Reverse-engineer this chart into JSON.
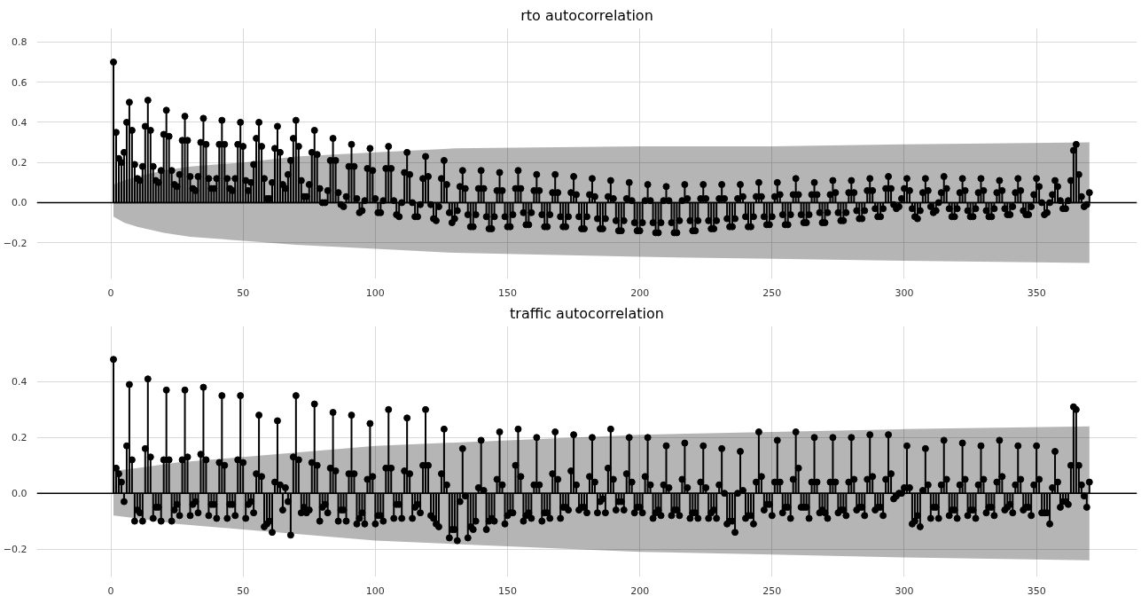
{
  "chart_data": [
    {
      "type": "lollipop",
      "title": "rto autocorrelation",
      "xlim": [
        -28,
        388
      ],
      "ylim": [
        -0.38,
        0.87
      ],
      "xticks": [
        0,
        50,
        100,
        150,
        200,
        250,
        300,
        350
      ],
      "yticks": [
        {
          "value": -0.2,
          "label": "−0.2"
        },
        {
          "value": 0,
          "label": "0.0"
        },
        {
          "value": 0.2,
          "label": "0.2"
        },
        {
          "value": 0.4,
          "label": "0.4"
        },
        {
          "value": 0.6,
          "label": "0.6"
        },
        {
          "value": 0.8,
          "label": "0.8"
        }
      ],
      "grid": true,
      "marker": "circle",
      "ref_lines": [
        {
          "axis": "y",
          "value": 0,
          "color": "#000000"
        }
      ],
      "series": [
        {
          "type": "line",
          "color": "#000000",
          "marker": "none",
          "x": [
            1,
            5,
            10,
            20,
            30,
            50,
            70,
            100,
            130,
            200,
            250,
            300,
            370
          ],
          "values": [
            0,
            0,
            0,
            0,
            0,
            0,
            0,
            0,
            0,
            0,
            0,
            0,
            0
          ],
          "upper": [
            0.09,
            0.11,
            0.13,
            0.16,
            0.18,
            0.2,
            0.23,
            0.25,
            0.27,
            0.28,
            0.28,
            0.29,
            0.3
          ],
          "lower": [
            -0.07,
            -0.1,
            -0.12,
            -0.15,
            -0.17,
            -0.19,
            -0.21,
            -0.23,
            -0.25,
            -0.27,
            -0.28,
            -0.29,
            -0.3
          ]
        },
        {
          "color": "#000000",
          "x": [
            1,
            2,
            3,
            4,
            5,
            6,
            7,
            8,
            9,
            10,
            11,
            12,
            13,
            14,
            15,
            16,
            17,
            18,
            19,
            20,
            21,
            22,
            23,
            24,
            25,
            26,
            27,
            28,
            29,
            30,
            31,
            32,
            33,
            34,
            35,
            36,
            37,
            38,
            39,
            40,
            41,
            42,
            43,
            44,
            45,
            46,
            47,
            48,
            49,
            50,
            51,
            52,
            53,
            54,
            55,
            56,
            57,
            58,
            59,
            60,
            61,
            62,
            63,
            64,
            65,
            66,
            67,
            68,
            69,
            70,
            71,
            72,
            73,
            74,
            75,
            76,
            77,
            78,
            79,
            80,
            81,
            82,
            83,
            84,
            85,
            86,
            87,
            88,
            89,
            90,
            91,
            92,
            93,
            94,
            95,
            96,
            97,
            98,
            99,
            100,
            101,
            102,
            103,
            104,
            105,
            106,
            107,
            108,
            109,
            110,
            111,
            112,
            113,
            114,
            115,
            116,
            117,
            118,
            119,
            120,
            121,
            122,
            123,
            124,
            125,
            126,
            127,
            128,
            129,
            130,
            131,
            132,
            133,
            134,
            135,
            136,
            137,
            138,
            139,
            140,
            141,
            142,
            143,
            144,
            145,
            146,
            147,
            148,
            149,
            150,
            151,
            152,
            153,
            154,
            155,
            156,
            157,
            158,
            159,
            160,
            161,
            162,
            163,
            164,
            165,
            166,
            167,
            168,
            169,
            170,
            171,
            172,
            173,
            174,
            175,
            176,
            177,
            178,
            179,
            180,
            181,
            182,
            183,
            184,
            185,
            186,
            187,
            188,
            189,
            190,
            191,
            192,
            193,
            194,
            195,
            196,
            197,
            198,
            199,
            200,
            201,
            202,
            203,
            204,
            205,
            206,
            207,
            208,
            209,
            210,
            211,
            212,
            213,
            214,
            215,
            216,
            217,
            218,
            219,
            220,
            221,
            222,
            223,
            224,
            225,
            226,
            227,
            228,
            229,
            230,
            231,
            232,
            233,
            234,
            235,
            236,
            237,
            238,
            239,
            240,
            241,
            242,
            243,
            244,
            245,
            246,
            247,
            248,
            249,
            250,
            251,
            252,
            253,
            254,
            255,
            256,
            257,
            258,
            259,
            260,
            261,
            262,
            263,
            264,
            265,
            266,
            267,
            268,
            269,
            270,
            271,
            272,
            273,
            274,
            275,
            276,
            277,
            278,
            279,
            280,
            281,
            282,
            283,
            284,
            285,
            286,
            287,
            288,
            289,
            290,
            291,
            292,
            293,
            294,
            295,
            296,
            297,
            298,
            299,
            300,
            301,
            302,
            303,
            304,
            305,
            306,
            307,
            308,
            309,
            310,
            311,
            312,
            313,
            314,
            315,
            316,
            317,
            318,
            319,
            320,
            321,
            322,
            323,
            324,
            325,
            326,
            327,
            328,
            329,
            330,
            331,
            332,
            333,
            334,
            335,
            336,
            337,
            338,
            339,
            340,
            341,
            342,
            343,
            344,
            345,
            346,
            347,
            348,
            349,
            350,
            351,
            352,
            353,
            354,
            355,
            356,
            357,
            358,
            359,
            360,
            361,
            362,
            363,
            364,
            365,
            366,
            367,
            368,
            369,
            370
          ],
          "values": [
            0.7,
            0.35,
            0.22,
            0.2,
            0.25,
            0.4,
            0.5,
            0.36,
            0.19,
            0.12,
            0.11,
            0.18,
            0.38,
            0.51,
            0.36,
            0.18,
            0.11,
            0.1,
            0.16,
            0.34,
            0.46,
            0.33,
            0.16,
            0.09,
            0.08,
            0.14,
            0.31,
            0.43,
            0.31,
            0.13,
            0.07,
            0.06,
            0.13,
            0.3,
            0.42,
            0.29,
            0.12,
            0.07,
            0.07,
            0.12,
            0.29,
            0.41,
            0.29,
            0.12,
            0.07,
            0.06,
            0.12,
            0.29,
            0.4,
            0.28,
            0.11,
            0.06,
            0.1,
            0.19,
            0.32,
            0.4,
            0.28,
            0.12,
            0.02,
            0.02,
            0.1,
            0.27,
            0.38,
            0.25,
            0.09,
            0.07,
            0.14,
            0.21,
            0.32,
            0.41,
            0.28,
            0.11,
            0.03,
            0.03,
            0.09,
            0.25,
            0.36,
            0.24,
            0.07,
            0.0,
            0.0,
            0.06,
            0.21,
            0.32,
            0.21,
            0.05,
            -0.01,
            -0.02,
            0.03,
            0.18,
            0.29,
            0.18,
            0.02,
            -0.05,
            -0.04,
            0.01,
            0.17,
            0.27,
            0.16,
            0.02,
            -0.05,
            -0.05,
            0.01,
            0.17,
            0.28,
            0.17,
            0.01,
            -0.06,
            -0.07,
            0.0,
            0.15,
            0.25,
            0.14,
            0.0,
            -0.07,
            -0.07,
            -0.01,
            0.12,
            0.23,
            0.13,
            -0.01,
            -0.08,
            -0.09,
            -0.02,
            0.12,
            0.21,
            0.09,
            -0.05,
            -0.1,
            -0.08,
            -0.04,
            0.08,
            0.16,
            0.07,
            -0.06,
            -0.12,
            -0.12,
            -0.06,
            0.07,
            0.16,
            0.07,
            -0.07,
            -0.13,
            -0.13,
            -0.07,
            0.06,
            0.15,
            0.06,
            -0.07,
            -0.12,
            -0.12,
            -0.06,
            0.07,
            0.16,
            0.07,
            -0.05,
            -0.11,
            -0.11,
            -0.05,
            0.06,
            0.14,
            0.06,
            -0.06,
            -0.12,
            -0.12,
            -0.06,
            0.05,
            0.14,
            0.05,
            -0.07,
            -0.12,
            -0.12,
            -0.07,
            0.05,
            0.13,
            0.04,
            -0.07,
            -0.13,
            -0.13,
            -0.07,
            0.04,
            0.12,
            0.03,
            -0.08,
            -0.13,
            -0.13,
            -0.08,
            0.03,
            0.11,
            0.02,
            -0.09,
            -0.14,
            -0.14,
            -0.09,
            0.02,
            0.1,
            0.01,
            -0.1,
            -0.14,
            -0.14,
            -0.1,
            0.01,
            0.09,
            0.01,
            -0.1,
            -0.15,
            -0.15,
            -0.1,
            0.01,
            0.08,
            0.01,
            -0.1,
            -0.15,
            -0.15,
            -0.09,
            0.01,
            0.09,
            0.02,
            -0.09,
            -0.14,
            -0.14,
            -0.09,
            0.02,
            0.09,
            0.02,
            -0.09,
            -0.13,
            -0.13,
            -0.09,
            0.02,
            0.09,
            0.02,
            -0.08,
            -0.12,
            -0.12,
            -0.08,
            0.02,
            0.09,
            0.03,
            -0.07,
            -0.12,
            -0.12,
            -0.07,
            0.03,
            0.1,
            0.03,
            -0.07,
            -0.11,
            -0.11,
            -0.07,
            0.03,
            0.1,
            0.04,
            -0.06,
            -0.11,
            -0.11,
            -0.06,
            0.04,
            0.12,
            0.04,
            -0.06,
            -0.1,
            -0.1,
            -0.06,
            0.04,
            0.1,
            0.04,
            -0.05,
            -0.1,
            -0.1,
            -0.05,
            0.04,
            0.11,
            0.05,
            -0.05,
            -0.09,
            -0.09,
            -0.05,
            0.05,
            0.11,
            0.05,
            -0.04,
            -0.08,
            -0.08,
            -0.04,
            0.06,
            0.12,
            0.06,
            -0.03,
            -0.07,
            -0.07,
            -0.03,
            0.07,
            0.13,
            0.07,
            -0.01,
            -0.03,
            -0.02,
            0.02,
            0.07,
            0.12,
            0.06,
            -0.03,
            -0.07,
            -0.08,
            -0.04,
            0.05,
            0.12,
            0.06,
            -0.02,
            -0.05,
            -0.04,
            0.0,
            0.05,
            0.13,
            0.07,
            -0.03,
            -0.07,
            -0.07,
            -0.03,
            0.05,
            0.12,
            0.06,
            -0.04,
            -0.07,
            -0.07,
            -0.03,
            0.05,
            0.12,
            0.06,
            -0.04,
            -0.07,
            -0.07,
            -0.03,
            0.05,
            0.11,
            0.06,
            -0.03,
            -0.06,
            -0.06,
            -0.02,
            0.05,
            0.12,
            0.06,
            -0.04,
            -0.06,
            -0.06,
            -0.02,
            0.04,
            0.12,
            0.08,
            0.0,
            -0.06,
            -0.05,
            0.0,
            0.04,
            0.11,
            0.08,
            0.01,
            -0.03,
            -0.03,
            0.01,
            0.11,
            0.26,
            0.29,
            0.14,
            0.03,
            -0.02,
            -0.01,
            0.05
          ]
        }
      ]
    },
    {
      "type": "lollipop",
      "title": "traffic autocorrelation",
      "xlim": [
        -28,
        388
      ],
      "ylim": [
        -0.3,
        0.6
      ],
      "xticks": [
        0,
        50,
        100,
        150,
        200,
        250,
        300,
        350
      ],
      "yticks": [
        {
          "value": -0.2,
          "label": "−0.2"
        },
        {
          "value": 0,
          "label": "0.0"
        },
        {
          "value": 0.2,
          "label": "0.2"
        },
        {
          "value": 0.4,
          "label": "0.4"
        }
      ],
      "grid": true,
      "marker": "circle",
      "ref_lines": [
        {
          "axis": "y",
          "value": 0,
          "color": "#000000"
        }
      ],
      "series": [
        {
          "type": "line",
          "color": "#000000",
          "marker": "none",
          "x": [
            1,
            10,
            25,
            50,
            100,
            150,
            200,
            250,
            300,
            370
          ],
          "values": [
            0,
            0,
            0,
            0,
            0,
            0,
            0,
            0,
            0,
            0
          ],
          "upper": [
            0.08,
            0.09,
            0.11,
            0.13,
            0.17,
            0.19,
            0.21,
            0.22,
            0.23,
            0.24
          ],
          "lower": [
            -0.08,
            -0.09,
            -0.11,
            -0.13,
            -0.17,
            -0.19,
            -0.21,
            -0.22,
            -0.23,
            -0.24
          ]
        },
        {
          "color": "#000000",
          "x": [
            1,
            2,
            3,
            4,
            5,
            6,
            7,
            8,
            9,
            10,
            11,
            12,
            13,
            14,
            15,
            16,
            17,
            18,
            19,
            20,
            21,
            22,
            23,
            24,
            25,
            26,
            27,
            28,
            29,
            30,
            31,
            32,
            33,
            34,
            35,
            36,
            37,
            38,
            39,
            40,
            41,
            42,
            43,
            44,
            45,
            46,
            47,
            48,
            49,
            50,
            51,
            52,
            53,
            54,
            55,
            56,
            57,
            58,
            59,
            60,
            61,
            62,
            63,
            64,
            65,
            66,
            67,
            68,
            69,
            70,
            71,
            72,
            73,
            74,
            75,
            76,
            77,
            78,
            79,
            80,
            81,
            82,
            83,
            84,
            85,
            86,
            87,
            88,
            89,
            90,
            91,
            92,
            93,
            94,
            95,
            96,
            97,
            98,
            99,
            100,
            101,
            102,
            103,
            104,
            105,
            106,
            107,
            108,
            109,
            110,
            111,
            112,
            113,
            114,
            115,
            116,
            117,
            118,
            119,
            120,
            121,
            122,
            123,
            124,
            125,
            126,
            127,
            128,
            129,
            130,
            131,
            132,
            133,
            134,
            135,
            136,
            137,
            138,
            139,
            140,
            141,
            142,
            143,
            144,
            145,
            146,
            147,
            148,
            149,
            150,
            151,
            152,
            153,
            154,
            155,
            156,
            157,
            158,
            159,
            160,
            161,
            162,
            163,
            164,
            165,
            166,
            167,
            168,
            169,
            170,
            171,
            172,
            173,
            174,
            175,
            176,
            177,
            178,
            179,
            180,
            181,
            182,
            183,
            184,
            185,
            186,
            187,
            188,
            189,
            190,
            191,
            192,
            193,
            194,
            195,
            196,
            197,
            198,
            199,
            200,
            201,
            202,
            203,
            204,
            205,
            206,
            207,
            208,
            209,
            210,
            211,
            212,
            213,
            214,
            215,
            216,
            217,
            218,
            219,
            220,
            221,
            222,
            223,
            224,
            225,
            226,
            227,
            228,
            229,
            230,
            231,
            232,
            233,
            234,
            235,
            236,
            237,
            238,
            239,
            240,
            241,
            242,
            243,
            244,
            245,
            246,
            247,
            248,
            249,
            250,
            251,
            252,
            253,
            254,
            255,
            256,
            257,
            258,
            259,
            260,
            261,
            262,
            263,
            264,
            265,
            266,
            267,
            268,
            269,
            270,
            271,
            272,
            273,
            274,
            275,
            276,
            277,
            278,
            279,
            280,
            281,
            282,
            283,
            284,
            285,
            286,
            287,
            288,
            289,
            290,
            291,
            292,
            293,
            294,
            295,
            296,
            297,
            298,
            299,
            300,
            301,
            302,
            303,
            304,
            305,
            306,
            307,
            308,
            309,
            310,
            311,
            312,
            313,
            314,
            315,
            316,
            317,
            318,
            319,
            320,
            321,
            322,
            323,
            324,
            325,
            326,
            327,
            328,
            329,
            330,
            331,
            332,
            333,
            334,
            335,
            336,
            337,
            338,
            339,
            340,
            341,
            342,
            343,
            344,
            345,
            346,
            347,
            348,
            349,
            350,
            351,
            352,
            353,
            354,
            355,
            356,
            357,
            358,
            359,
            360,
            361,
            362,
            363,
            364,
            365,
            366,
            367,
            368,
            369,
            370
          ],
          "values": [
            0.48,
            0.09,
            0.07,
            0.04,
            -0.03,
            0.17,
            0.39,
            0.12,
            -0.1,
            -0.06,
            -0.07,
            -0.1,
            0.16,
            0.41,
            0.13,
            -0.09,
            -0.05,
            -0.05,
            -0.1,
            0.12,
            0.37,
            0.12,
            -0.1,
            -0.06,
            -0.04,
            -0.08,
            0.12,
            0.37,
            0.13,
            -0.08,
            -0.04,
            -0.03,
            -0.07,
            0.14,
            0.38,
            0.12,
            -0.08,
            -0.04,
            -0.04,
            -0.09,
            0.11,
            0.35,
            0.1,
            -0.09,
            -0.04,
            -0.04,
            -0.08,
            0.12,
            0.35,
            0.11,
            -0.09,
            -0.04,
            -0.03,
            -0.07,
            0.07,
            0.28,
            0.06,
            -0.12,
            -0.11,
            -0.1,
            -0.14,
            0.04,
            0.26,
            0.03,
            -0.06,
            0.02,
            -0.03,
            -0.15,
            0.13,
            0.35,
            0.12,
            -0.07,
            -0.05,
            -0.07,
            -0.06,
            0.11,
            0.32,
            0.1,
            -0.1,
            -0.05,
            -0.04,
            -0.07,
            0.09,
            0.29,
            0.08,
            -0.1,
            -0.06,
            -0.06,
            -0.1,
            0.07,
            0.28,
            0.07,
            -0.11,
            -0.09,
            -0.07,
            -0.11,
            0.05,
            0.25,
            0.06,
            -0.11,
            -0.08,
            -0.08,
            -0.1,
            0.09,
            0.3,
            0.09,
            -0.09,
            -0.04,
            -0.04,
            -0.09,
            0.08,
            0.27,
            0.07,
            -0.09,
            -0.05,
            -0.04,
            -0.07,
            0.1,
            0.3,
            0.1,
            -0.08,
            -0.09,
            -0.11,
            -0.12,
            0.07,
            0.23,
            0.03,
            -0.16,
            -0.13,
            -0.13,
            -0.17,
            -0.03,
            0.16,
            -0.01,
            -0.16,
            -0.12,
            -0.13,
            -0.1,
            0.02,
            0.19,
            0.01,
            -0.13,
            -0.1,
            -0.09,
            -0.1,
            0.05,
            0.22,
            0.03,
            -0.11,
            -0.08,
            -0.07,
            -0.07,
            0.1,
            0.23,
            0.06,
            -0.1,
            -0.08,
            -0.07,
            -0.09,
            0.03,
            0.2,
            0.03,
            -0.1,
            -0.07,
            -0.07,
            -0.09,
            0.07,
            0.22,
            0.05,
            -0.09,
            -0.05,
            -0.05,
            -0.06,
            0.08,
            0.21,
            0.03,
            -0.06,
            -0.05,
            -0.05,
            -0.07,
            0.06,
            0.2,
            0.04,
            -0.07,
            -0.03,
            -0.02,
            -0.07,
            0.09,
            0.23,
            0.05,
            -0.06,
            -0.03,
            -0.03,
            -0.06,
            0.07,
            0.2,
            0.04,
            -0.07,
            -0.05,
            -0.05,
            -0.07,
            0.06,
            0.2,
            0.03,
            -0.09,
            -0.07,
            -0.06,
            -0.08,
            0.03,
            0.17,
            0.02,
            -0.08,
            -0.06,
            -0.06,
            -0.08,
            0.05,
            0.18,
            0.02,
            -0.09,
            -0.07,
            -0.07,
            -0.09,
            0.04,
            0.17,
            0.02,
            -0.09,
            -0.07,
            -0.06,
            -0.09,
            0.03,
            0.16,
            0.0,
            -0.11,
            -0.1,
            -0.1,
            -0.14,
            0.0,
            0.15,
            0.01,
            -0.09,
            -0.08,
            -0.08,
            -0.11,
            0.04,
            0.22,
            0.06,
            -0.06,
            -0.04,
            -0.04,
            -0.08,
            0.04,
            0.19,
            0.04,
            -0.07,
            -0.05,
            -0.05,
            -0.09,
            0.05,
            0.22,
            0.09,
            -0.05,
            -0.05,
            -0.05,
            -0.09,
            0.04,
            0.2,
            0.04,
            -0.07,
            -0.06,
            -0.07,
            -0.09,
            0.04,
            0.2,
            0.04,
            -0.07,
            -0.06,
            -0.06,
            -0.08,
            0.04,
            0.2,
            0.05,
            -0.06,
            -0.05,
            -0.05,
            -0.08,
            0.05,
            0.21,
            0.06,
            -0.06,
            -0.05,
            -0.05,
            -0.08,
            0.05,
            0.21,
            0.07,
            -0.02,
            -0.01,
            0.0,
            0.0,
            0.02,
            0.17,
            0.02,
            -0.11,
            -0.1,
            -0.08,
            -0.12,
            0.01,
            0.16,
            0.03,
            -0.09,
            -0.05,
            -0.05,
            -0.09,
            0.03,
            0.19,
            0.05,
            -0.08,
            -0.06,
            -0.06,
            -0.09,
            0.03,
            0.18,
            0.05,
            -0.08,
            -0.06,
            -0.06,
            -0.09,
            0.03,
            0.17,
            0.05,
            -0.07,
            -0.05,
            -0.05,
            -0.08,
            0.04,
            0.19,
            0.06,
            -0.06,
            -0.05,
            -0.04,
            -0.07,
            0.03,
            0.17,
            0.05,
            -0.06,
            -0.05,
            -0.05,
            -0.08,
            0.03,
            0.17,
            0.05,
            -0.07,
            -0.07,
            -0.07,
            -0.11,
            0.02,
            0.15,
            0.04,
            -0.05,
            -0.03,
            -0.03,
            -0.04,
            0.1,
            0.31,
            0.3,
            0.1,
            0.03,
            -0.01,
            -0.05,
            0.04
          ]
        }
      ]
    }
  ]
}
